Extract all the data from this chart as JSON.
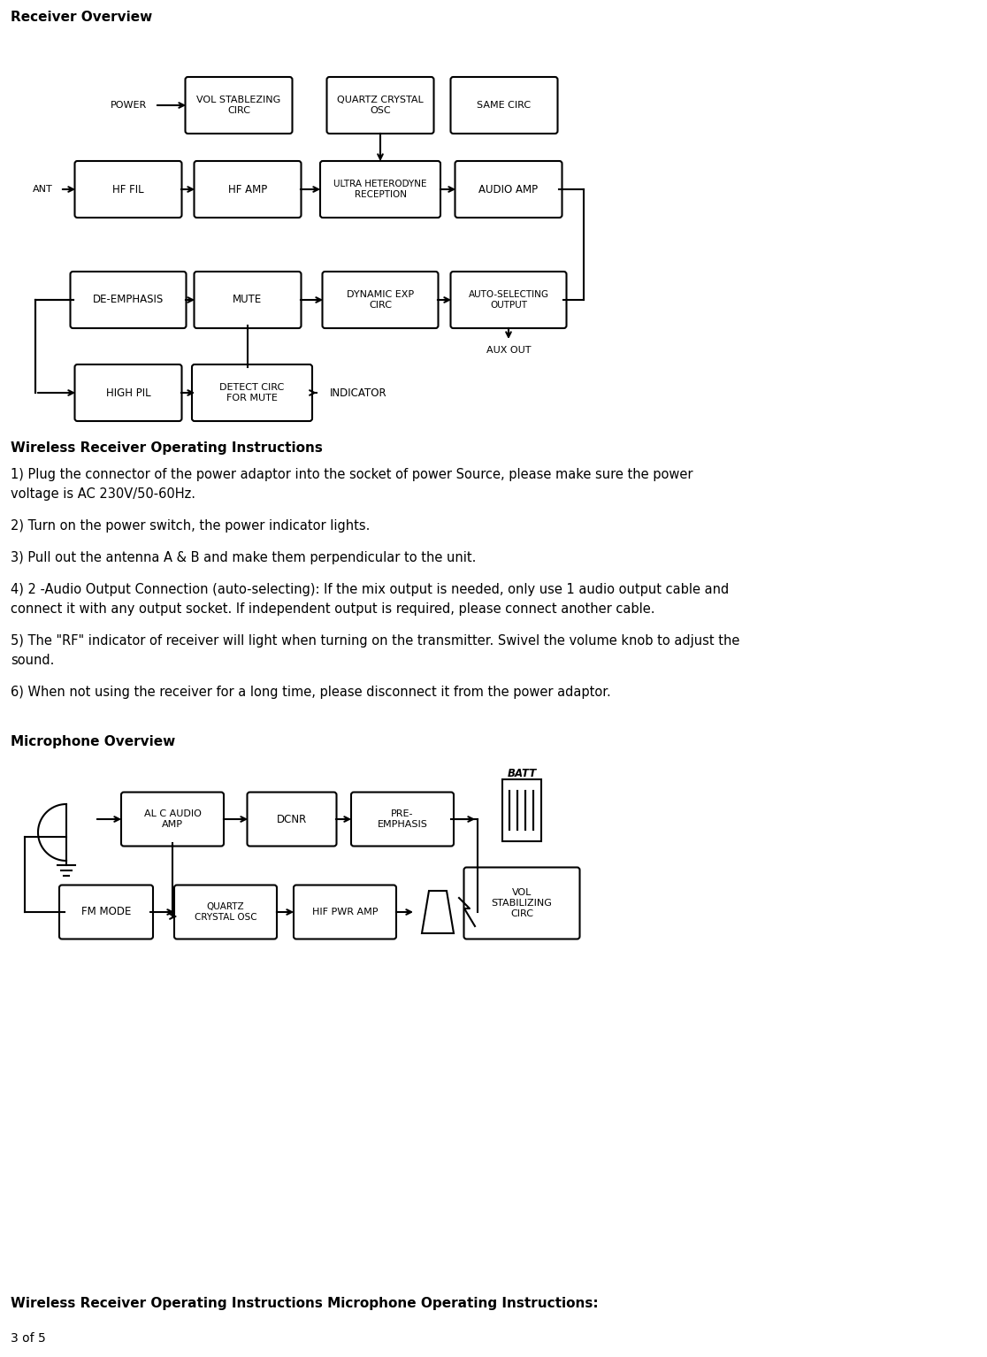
{
  "page_title": "Receiver Overview",
  "section2_title": "Wireless Receiver Operating Instructions",
  "instructions": [
    "1) Plug the connector of the power adaptor into the socket of power Source, please make sure the power\nvoltage is AC 230V/50-60Hz.",
    "2) Turn on the power switch, the power indicator lights.",
    "3) Pull out the antenna A & B and make them perpendicular to the unit.",
    "4) 2 -Audio Output Connection (auto-selecting): If the mix output is needed, only use 1 audio output cable and\nconnect it with any output socket. If independent output is required, please connect another cable.",
    "5) The \"RF\" indicator of receiver will light when turning on the transmitter. Swivel the volume knob to adjust the\nsound.",
    "6) When not using the receiver for a long time, please disconnect it from the power adaptor."
  ],
  "section3_title": "Microphone Overview",
  "footer_text": "Wireless Receiver Operating Instructions Microphone Operating Instructions:",
  "page_num": "3 of 5",
  "bg_color": "#ffffff",
  "text_color": "#000000"
}
